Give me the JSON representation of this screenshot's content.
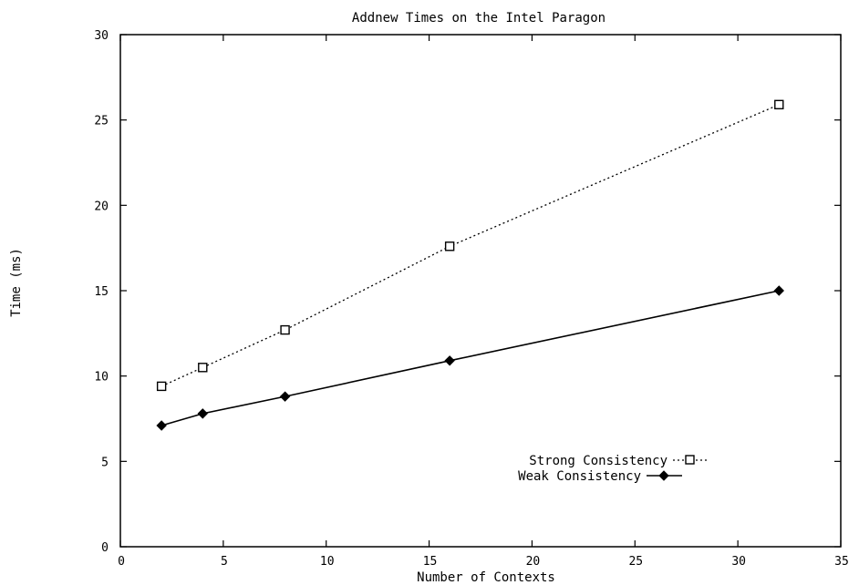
{
  "chart_data": {
    "type": "line",
    "title": "Addnew Times on the Intel Paragon",
    "xlabel": "Number of Contexts",
    "ylabel": "Time (ms)",
    "xlim": [
      0,
      35
    ],
    "ylim": [
      0,
      30
    ],
    "xticks": [
      0,
      5,
      10,
      15,
      20,
      25,
      30,
      35
    ],
    "yticks": [
      0,
      5,
      10,
      15,
      20,
      25,
      30
    ],
    "grid": false,
    "legend_position": "bottom-right",
    "series": [
      {
        "name": "Strong Consistency",
        "line_style": "dotted",
        "marker": "square",
        "color": "#000000",
        "points": [
          {
            "x": 2,
            "y": 9.4
          },
          {
            "x": 4,
            "y": 10.5
          },
          {
            "x": 8,
            "y": 12.7
          },
          {
            "x": 16,
            "y": 17.6
          },
          {
            "x": 32,
            "y": 25.9
          }
        ]
      },
      {
        "name": "Weak Consistency",
        "line_style": "solid",
        "marker": "diamond",
        "color": "#000000",
        "points": [
          {
            "x": 2,
            "y": 7.1
          },
          {
            "x": 4,
            "y": 7.8
          },
          {
            "x": 8,
            "y": 8.8
          },
          {
            "x": 16,
            "y": 10.9
          },
          {
            "x": 32,
            "y": 15.0
          }
        ]
      }
    ]
  }
}
